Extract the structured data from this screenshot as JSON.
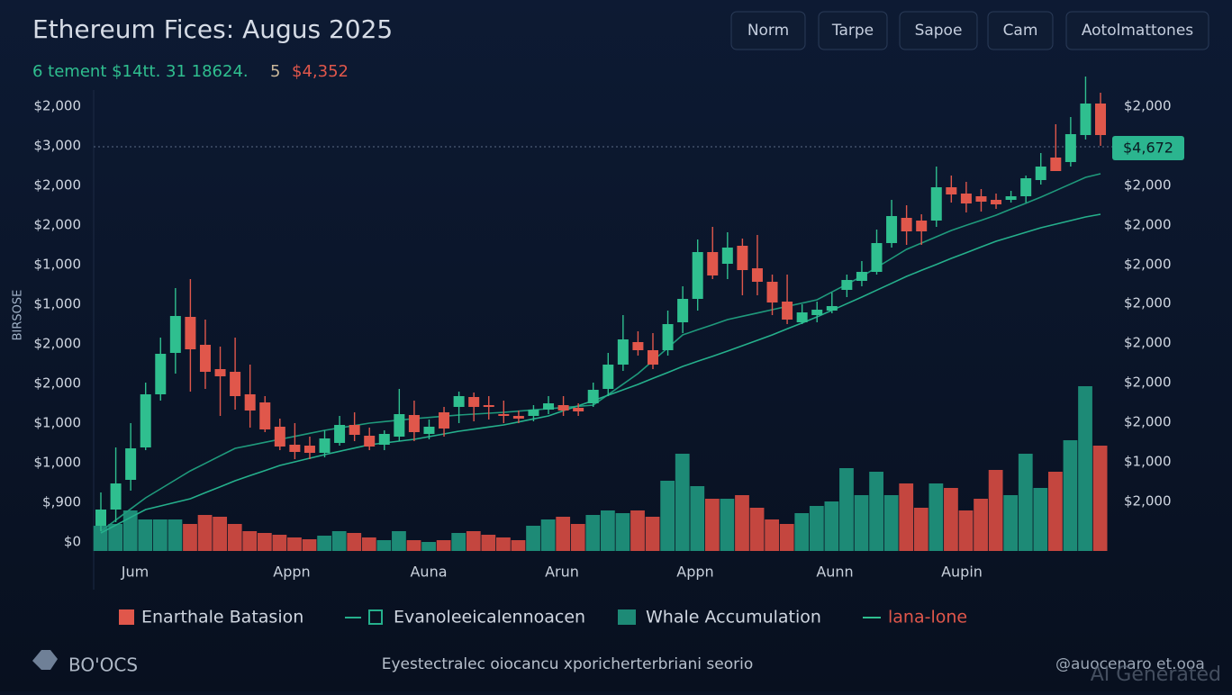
{
  "chart_data": {
    "type": "candlestick",
    "title": "Ethereum Fices: Augus 2025",
    "stats": [
      "6 tement $14tt. 31 18624.",
      "5",
      "$4,352"
    ],
    "buttons": [
      "Norm",
      "Tarpe",
      "Sapoe",
      "Cam",
      "Aotolmattones"
    ],
    "y_axis_title": "BIRSOSE",
    "left_axis_labels": [
      "$2,000",
      "$3,000",
      "$2,000",
      "$2,000",
      "$1,000",
      "$1,000",
      "$2,000",
      "$2,000",
      "$1,000",
      "$1,000",
      "$,900",
      "$0"
    ],
    "right_axis_labels": [
      "$2,000",
      "$2,000",
      "$2,000",
      "$2,000",
      "$2,000",
      "$2,000",
      "$2,000",
      "$2,000",
      "$1,000",
      "$2,000"
    ],
    "price_tag": "$4,672",
    "x_axis_labels": [
      "Jum",
      "Appn",
      "Auna",
      "Arun",
      "Appn",
      "Aunn",
      "Aupin"
    ],
    "ylim": [
      0,
      5200
    ],
    "volume_lim": [
      0,
      200
    ],
    "up_color": "#2fbf8f",
    "down_color": "#e0574b",
    "volume_up_color": "#1d8a76",
    "volume_down_color": "#c4463f",
    "candles": {
      "open": [
        170,
        350,
        680,
        1040,
        1630,
        2090,
        2490,
        2180,
        1910,
        1880,
        1630,
        1540,
        1270,
        1070,
        1060,
        980,
        1090,
        1290,
        1170,
        1070,
        1160,
        1400,
        1190,
        1430,
        1490,
        1600,
        1510,
        1410,
        1390,
        1390,
        1460,
        1510,
        1480,
        1530,
        1690,
        1960,
        2210,
        2120,
        2120,
        2430,
        2690,
        3210,
        3080,
        3280,
        3030,
        2880,
        2660,
        2430,
        2510,
        2560,
        2790,
        2890,
        2990,
        3310,
        3590,
        3560,
        3560,
        3930,
        3860,
        3830,
        3790,
        3790,
        3830,
        4010,
        4260,
        4210,
        4510,
        4860
      ],
      "high": [
        540,
        1040,
        1310,
        1760,
        2260,
        2810,
        2910,
        2460,
        2160,
        2260,
        1960,
        1610,
        1360,
        1310,
        1160,
        1230,
        1390,
        1430,
        1260,
        1230,
        1690,
        1560,
        1350,
        1490,
        1660,
        1650,
        1610,
        1560,
        1450,
        1510,
        1610,
        1610,
        1530,
        1760,
        2090,
        2510,
        2330,
        2310,
        2560,
        2830,
        3350,
        3490,
        3430,
        3360,
        3400,
        2960,
        2960,
        2630,
        2660,
        2760,
        2960,
        3110,
        3460,
        3790,
        3730,
        3630,
        4160,
        4060,
        3990,
        3910,
        3860,
        3890,
        4060,
        4310,
        4630,
        4710,
        5160,
        4980
      ],
      "low": [
        110,
        210,
        560,
        1010,
        1560,
        1860,
        1660,
        1690,
        1390,
        1460,
        1260,
        1210,
        1010,
        910,
        910,
        930,
        1060,
        1110,
        1010,
        1010,
        1110,
        1110,
        1130,
        1160,
        1310,
        1330,
        1350,
        1310,
        1310,
        1330,
        1410,
        1390,
        1390,
        1490,
        1610,
        1890,
        2060,
        1910,
        2060,
        2310,
        2560,
        2910,
        2910,
        2730,
        2730,
        2510,
        2410,
        2410,
        2430,
        2530,
        2710,
        2830,
        2960,
        3260,
        3290,
        3290,
        3490,
        3760,
        3650,
        3660,
        3690,
        3760,
        3760,
        3960,
        4110,
        4160,
        4460,
        4390
      ],
      "close": [
        350,
        640,
        1030,
        1630,
        2080,
        2500,
        2130,
        1880,
        1830,
        1610,
        1450,
        1240,
        1050,
        990,
        980,
        1140,
        1290,
        1180,
        1050,
        1190,
        1410,
        1210,
        1270,
        1250,
        1610,
        1490,
        1490,
        1390,
        1360,
        1460,
        1530,
        1450,
        1440,
        1680,
        1960,
        2240,
        2120,
        1960,
        2410,
        2690,
        3210,
        2950,
        3260,
        3010,
        2880,
        2650,
        2460,
        2540,
        2570,
        2610,
        2900,
        2990,
        3310,
        3610,
        3440,
        3440,
        3930,
        3850,
        3750,
        3770,
        3740,
        3830,
        4030,
        4160,
        4110,
        4520,
        4860,
        4510
      ]
    },
    "volume": [
      28,
      30,
      45,
      35,
      35,
      35,
      30,
      40,
      38,
      30,
      22,
      20,
      18,
      15,
      13,
      17,
      22,
      20,
      15,
      12,
      22,
      12,
      10,
      12,
      20,
      22,
      18,
      15,
      12,
      28,
      35,
      38,
      30,
      40,
      45,
      42,
      45,
      38,
      78,
      108,
      72,
      58,
      58,
      62,
      48,
      35,
      30,
      42,
      50,
      55,
      92,
      62,
      88,
      62,
      75,
      48,
      75,
      70,
      45,
      58,
      90,
      62,
      108,
      70,
      88,
      123,
      183,
      117
    ],
    "ma_series": [
      {
        "color": "#1f9a7c",
        "values": [
          110,
          233,
          357,
          480,
          580,
          680,
          780,
          863,
          947,
          1030,
          1063,
          1097,
          1130,
          1163,
          1197,
          1230,
          1257,
          1283,
          1310,
          1327,
          1343,
          1360,
          1373,
          1387,
          1400,
          1410,
          1420,
          1430,
          1443,
          1457,
          1470,
          1483,
          1497,
          1510,
          1627,
          1743,
          1860,
          2003,
          2147,
          2290,
          2347,
          2403,
          2460,
          2497,
          2533,
          2570,
          2607,
          2643,
          2680,
          2767,
          2853,
          2940,
          3040,
          3140,
          3240,
          3310,
          3380,
          3450,
          3507,
          3563,
          3620,
          3687,
          3753,
          3820,
          3893,
          3967,
          4040,
          4080
        ]
      },
      {
        "color": "#25b08c",
        "values": [
          90,
          177,
          263,
          350,
          390,
          430,
          470,
          537,
          603,
          670,
          727,
          783,
          840,
          880,
          920,
          960,
          997,
          1033,
          1070,
          1090,
          1110,
          1130,
          1160,
          1190,
          1220,
          1243,
          1267,
          1290,
          1323,
          1357,
          1390,
          1447,
          1503,
          1560,
          1620,
          1680,
          1740,
          1807,
          1873,
          1940,
          1997,
          2053,
          2110,
          2170,
          2230,
          2290,
          2357,
          2423,
          2490,
          2563,
          2637,
          2710,
          2787,
          2863,
          2940,
          3007,
          3073,
          3140,
          3203,
          3267,
          3330,
          3380,
          3430,
          3480,
          3520,
          3560,
          3600,
          3630
        ]
      }
    ],
    "legend": [
      "Enarthale Batasion",
      "Evanoleeicalennoacen",
      "Whale Accumulation",
      "lana-lone"
    ],
    "footer": {
      "logo": "BO'OCS",
      "caption": "Eyestectralec oiocancu xporicherterbriani seorio",
      "credit": "@auocenaro et.ooa",
      "watermark": "AI Generated"
    }
  }
}
